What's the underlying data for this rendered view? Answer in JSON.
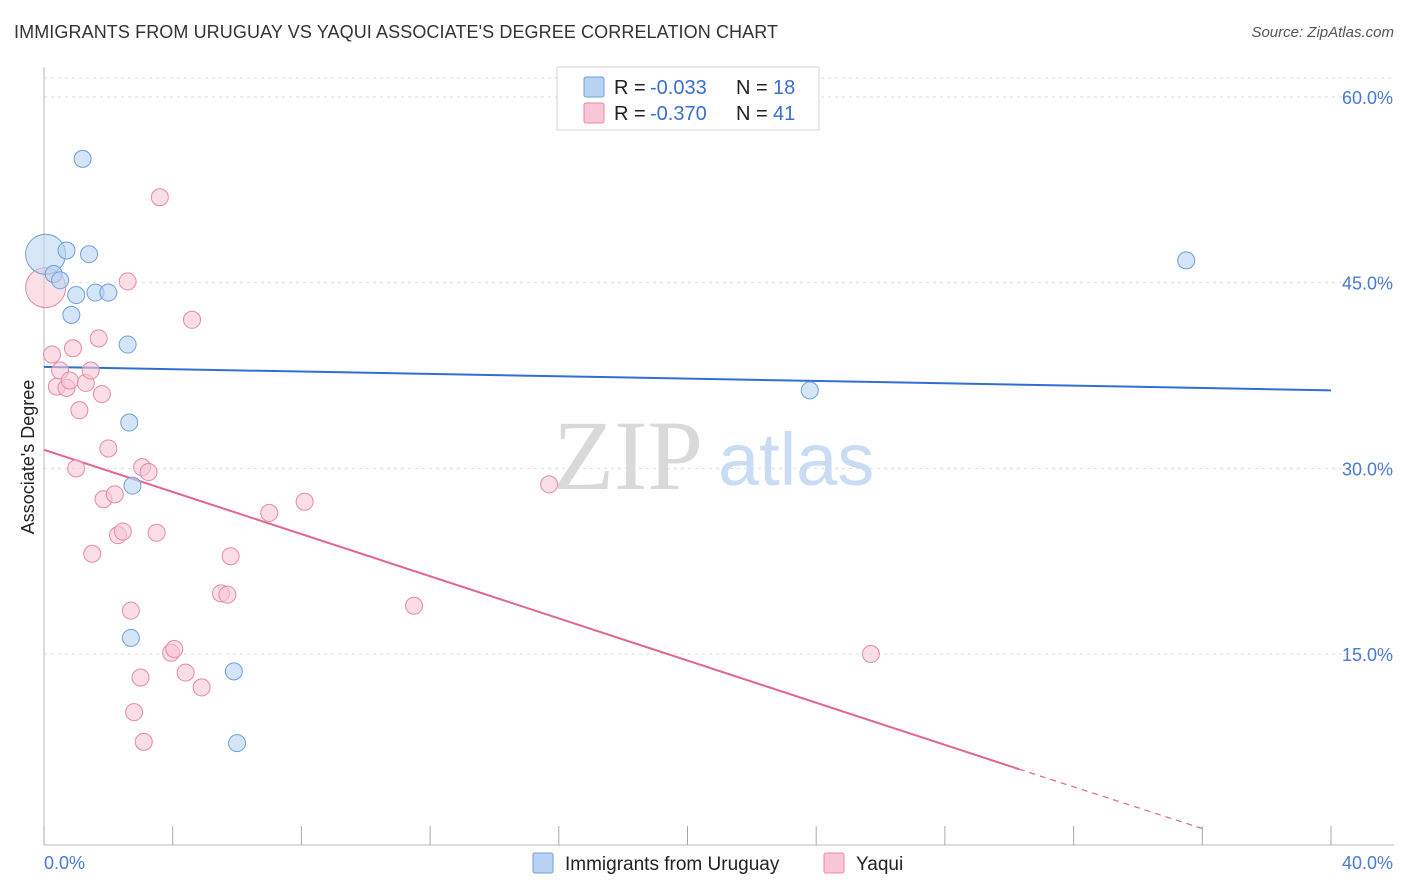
{
  "header": {
    "title": "IMMIGRANTS FROM URUGUAY VS YAQUI ASSOCIATE'S DEGREE CORRELATION CHART",
    "source": "Source: ZipAtlas.com"
  },
  "watermark": {
    "zip": "ZIP",
    "atlas": "atlas"
  },
  "legend_top": {
    "rows": [
      {
        "r_label": "R = ",
        "r_value": "-0.033",
        "n_label": "N = ",
        "n_value": "18"
      },
      {
        "r_label": "R = ",
        "r_value": "-0.370",
        "n_label": "N = ",
        "n_value": "41"
      }
    ]
  },
  "legend_bottom": {
    "items": [
      {
        "label": "Immigrants from Uruguay"
      },
      {
        "label": "Yaqui"
      }
    ]
  },
  "chart_data": {
    "type": "scatter",
    "title": "IMMIGRANTS FROM URUGUAY VS YAQUI ASSOCIATE'S DEGREE CORRELATION CHART",
    "xlabel": "",
    "ylabel": "Associate's Degree",
    "xlim": [
      0,
      40
    ],
    "ylim": [
      0,
      62
    ],
    "x_tick_labels": [
      "0.0%",
      "40.0%"
    ],
    "y_ticks": [
      15,
      30,
      45,
      60
    ],
    "y_tick_labels": [
      "15.0%",
      "30.0%",
      "45.0%",
      "60.0%"
    ],
    "grid": true,
    "legend_position": "top-center",
    "colors": {
      "uruguay_fill": "#b8d3f3",
      "uruguay_stroke": "#6f9fdc",
      "uruguay_line": "#2f6fd0",
      "yaqui_fill": "#f8c6d6",
      "yaqui_stroke": "#e68aa9",
      "yaqui_line": "#e06690",
      "grid": "#dddddd",
      "tick_label": "#4a7bd0"
    },
    "series": [
      {
        "name": "Immigrants from Uruguay",
        "r": -0.033,
        "n": 18,
        "trend": {
          "x": [
            0,
            40
          ],
          "y": [
            38.2,
            36.3
          ]
        },
        "points": [
          {
            "x": 0.05,
            "y": 47.3,
            "big": true
          },
          {
            "x": 0.3,
            "y": 45.7
          },
          {
            "x": 0.5,
            "y": 45.2
          },
          {
            "x": 0.7,
            "y": 47.6
          },
          {
            "x": 0.85,
            "y": 42.4
          },
          {
            "x": 1.0,
            "y": 44.0
          },
          {
            "x": 1.2,
            "y": 55.0
          },
          {
            "x": 1.4,
            "y": 47.3
          },
          {
            "x": 1.6,
            "y": 44.2
          },
          {
            "x": 2.0,
            "y": 44.2
          },
          {
            "x": 2.6,
            "y": 40.0
          },
          {
            "x": 2.7,
            "y": 16.3
          },
          {
            "x": 2.65,
            "y": 33.7
          },
          {
            "x": 2.75,
            "y": 28.6
          },
          {
            "x": 5.9,
            "y": 13.6
          },
          {
            "x": 6.0,
            "y": 7.8
          },
          {
            "x": 23.8,
            "y": 36.3
          },
          {
            "x": 35.5,
            "y": 46.8
          }
        ]
      },
      {
        "name": "Yaqui",
        "r": -0.37,
        "n": 41,
        "trend": {
          "x": [
            0,
            30.3
          ],
          "y": [
            31.5,
            5.7
          ]
        },
        "trend_dashed": {
          "x": [
            30.3,
            36.0
          ],
          "y": [
            5.7,
            0.9
          ]
        },
        "points": [
          {
            "x": 0.05,
            "y": 44.6,
            "big": true
          },
          {
            "x": 0.25,
            "y": 39.2
          },
          {
            "x": 0.4,
            "y": 36.6
          },
          {
            "x": 0.5,
            "y": 37.9
          },
          {
            "x": 0.7,
            "y": 36.5
          },
          {
            "x": 0.8,
            "y": 37.1
          },
          {
            "x": 0.9,
            "y": 39.7
          },
          {
            "x": 1.0,
            "y": 30.0
          },
          {
            "x": 1.1,
            "y": 34.7
          },
          {
            "x": 1.3,
            "y": 36.9
          },
          {
            "x": 1.45,
            "y": 37.9
          },
          {
            "x": 1.5,
            "y": 23.1
          },
          {
            "x": 1.7,
            "y": 40.5
          },
          {
            "x": 1.8,
            "y": 36.0
          },
          {
            "x": 1.85,
            "y": 27.5
          },
          {
            "x": 2.0,
            "y": 31.6
          },
          {
            "x": 2.2,
            "y": 27.9
          },
          {
            "x": 2.3,
            "y": 24.6
          },
          {
            "x": 2.45,
            "y": 24.9
          },
          {
            "x": 2.6,
            "y": 45.1
          },
          {
            "x": 2.7,
            "y": 18.5
          },
          {
            "x": 2.8,
            "y": 10.3
          },
          {
            "x": 3.0,
            "y": 13.1
          },
          {
            "x": 3.05,
            "y": 30.1
          },
          {
            "x": 3.1,
            "y": 7.9
          },
          {
            "x": 3.25,
            "y": 29.7
          },
          {
            "x": 3.5,
            "y": 24.8
          },
          {
            "x": 3.6,
            "y": 51.9
          },
          {
            "x": 3.95,
            "y": 15.1
          },
          {
            "x": 4.05,
            "y": 15.4
          },
          {
            "x": 4.4,
            "y": 13.5
          },
          {
            "x": 4.6,
            "y": 42.0
          },
          {
            "x": 4.9,
            "y": 12.3
          },
          {
            "x": 5.5,
            "y": 19.9
          },
          {
            "x": 5.7,
            "y": 19.8
          },
          {
            "x": 5.8,
            "y": 22.9
          },
          {
            "x": 7.0,
            "y": 26.4
          },
          {
            "x": 8.1,
            "y": 27.3
          },
          {
            "x": 11.5,
            "y": 18.9
          },
          {
            "x": 15.7,
            "y": 28.7
          },
          {
            "x": 25.7,
            "y": 15.0
          }
        ]
      }
    ]
  }
}
